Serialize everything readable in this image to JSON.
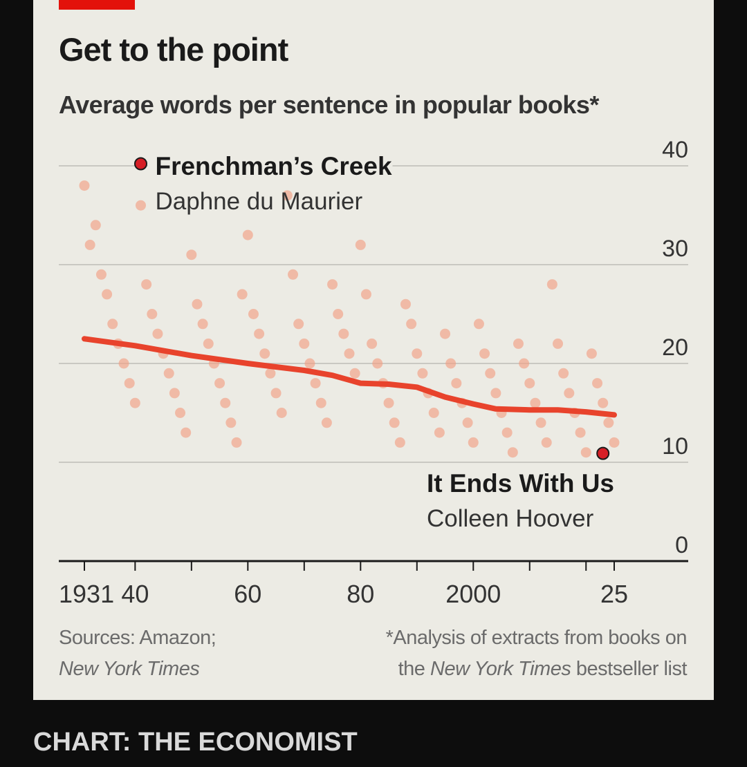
{
  "header": {
    "title": "Get to the point",
    "subtitle": "Average words per sentence in popular books*"
  },
  "footer": {
    "sources_line1": "Sources: Amazon;",
    "sources_line2": "New York Times",
    "note_line1": "*Analysis of extracts from books on",
    "note_line2_prefix": "the ",
    "note_line2_italic": "New York Times",
    "note_line2_suffix": " bestseller list",
    "credit": "CHART: THE ECONOMIST"
  },
  "colors": {
    "brand_red": "#e3120b",
    "trend": "#e8432c",
    "dots": "#f2a084",
    "highlight": "#d61f26",
    "background": "#ecebe4"
  },
  "chart_data": {
    "type": "scatter",
    "title": "Get to the point",
    "subtitle": "Average words per sentence in popular books*",
    "ylim": [
      0,
      40
    ],
    "yticks": [
      0,
      10,
      20,
      30,
      40
    ],
    "ytick_labels": [
      "0",
      "10",
      "20",
      "30",
      "40"
    ],
    "xlim": [
      1930,
      2027
    ],
    "xticks": [
      1931,
      1940,
      1950,
      1960,
      1970,
      1980,
      1990,
      2000,
      2010,
      2020,
      2025
    ],
    "xtick_labels": [
      {
        "x": 1931,
        "label": "1931"
      },
      {
        "x": 1940,
        "label": "40"
      },
      {
        "x": 1960,
        "label": "60"
      },
      {
        "x": 1980,
        "label": "80"
      },
      {
        "x": 2000,
        "label": "2000"
      },
      {
        "x": 2025,
        "label": "25"
      }
    ],
    "grid": true,
    "trend": [
      [
        1931,
        22.5
      ],
      [
        1940,
        21.8
      ],
      [
        1950,
        20.8
      ],
      [
        1960,
        20.0
      ],
      [
        1970,
        19.3
      ],
      [
        1975,
        18.8
      ],
      [
        1980,
        18.0
      ],
      [
        1985,
        17.9
      ],
      [
        1990,
        17.6
      ],
      [
        1995,
        16.6
      ],
      [
        2000,
        15.9
      ],
      [
        2004,
        15.4
      ],
      [
        2010,
        15.3
      ],
      [
        2015,
        15.3
      ],
      [
        2020,
        15.1
      ],
      [
        2025,
        14.8
      ]
    ],
    "highlights": [
      {
        "x": 1941,
        "y": 40.5,
        "title": "Frenchman’s Creek",
        "author": "Daphne du Maurier"
      },
      {
        "x": 2023,
        "y": 10.9,
        "title": "It Ends With Us",
        "author": "Colleen Hoover"
      }
    ],
    "points": [
      [
        1931,
        38
      ],
      [
        1932,
        32
      ],
      [
        1933,
        34
      ],
      [
        1934,
        29
      ],
      [
        1935,
        27
      ],
      [
        1936,
        24
      ],
      [
        1937,
        22
      ],
      [
        1938,
        20
      ],
      [
        1939,
        18
      ],
      [
        1940,
        16
      ],
      [
        1941,
        36
      ],
      [
        1942,
        28
      ],
      [
        1943,
        25
      ],
      [
        1944,
        23
      ],
      [
        1945,
        21
      ],
      [
        1946,
        19
      ],
      [
        1947,
        17
      ],
      [
        1948,
        15
      ],
      [
        1949,
        13
      ],
      [
        1950,
        31
      ],
      [
        1951,
        26
      ],
      [
        1952,
        24
      ],
      [
        1953,
        22
      ],
      [
        1954,
        20
      ],
      [
        1955,
        18
      ],
      [
        1956,
        16
      ],
      [
        1957,
        14
      ],
      [
        1958,
        12
      ],
      [
        1959,
        27
      ],
      [
        1960,
        33
      ],
      [
        1961,
        25
      ],
      [
        1962,
        23
      ],
      [
        1963,
        21
      ],
      [
        1964,
        19
      ],
      [
        1965,
        17
      ],
      [
        1966,
        15
      ],
      [
        1967,
        37
      ],
      [
        1968,
        29
      ],
      [
        1969,
        24
      ],
      [
        1970,
        22
      ],
      [
        1971,
        20
      ],
      [
        1972,
        18
      ],
      [
        1973,
        16
      ],
      [
        1974,
        14
      ],
      [
        1975,
        28
      ],
      [
        1976,
        25
      ],
      [
        1977,
        23
      ],
      [
        1978,
        21
      ],
      [
        1979,
        19
      ],
      [
        1980,
        32
      ],
      [
        1981,
        27
      ],
      [
        1982,
        22
      ],
      [
        1983,
        20
      ],
      [
        1984,
        18
      ],
      [
        1985,
        16
      ],
      [
        1986,
        14
      ],
      [
        1987,
        12
      ],
      [
        1988,
        26
      ],
      [
        1989,
        24
      ],
      [
        1990,
        21
      ],
      [
        1991,
        19
      ],
      [
        1992,
        17
      ],
      [
        1993,
        15
      ],
      [
        1994,
        13
      ],
      [
        1995,
        23
      ],
      [
        1996,
        20
      ],
      [
        1997,
        18
      ],
      [
        1998,
        16
      ],
      [
        1999,
        14
      ],
      [
        2000,
        12
      ],
      [
        2001,
        24
      ],
      [
        2002,
        21
      ],
      [
        2003,
        19
      ],
      [
        2004,
        17
      ],
      [
        2005,
        15
      ],
      [
        2006,
        13
      ],
      [
        2007,
        11
      ],
      [
        2008,
        22
      ],
      [
        2009,
        20
      ],
      [
        2010,
        18
      ],
      [
        2011,
        16
      ],
      [
        2012,
        14
      ],
      [
        2013,
        12
      ],
      [
        2014,
        28
      ],
      [
        2015,
        22
      ],
      [
        2016,
        19
      ],
      [
        2017,
        17
      ],
      [
        2018,
        15
      ],
      [
        2019,
        13
      ],
      [
        2020,
        11
      ],
      [
        2021,
        21
      ],
      [
        2022,
        18
      ],
      [
        2023,
        16
      ],
      [
        2024,
        14
      ],
      [
        2025,
        12
      ]
    ]
  }
}
